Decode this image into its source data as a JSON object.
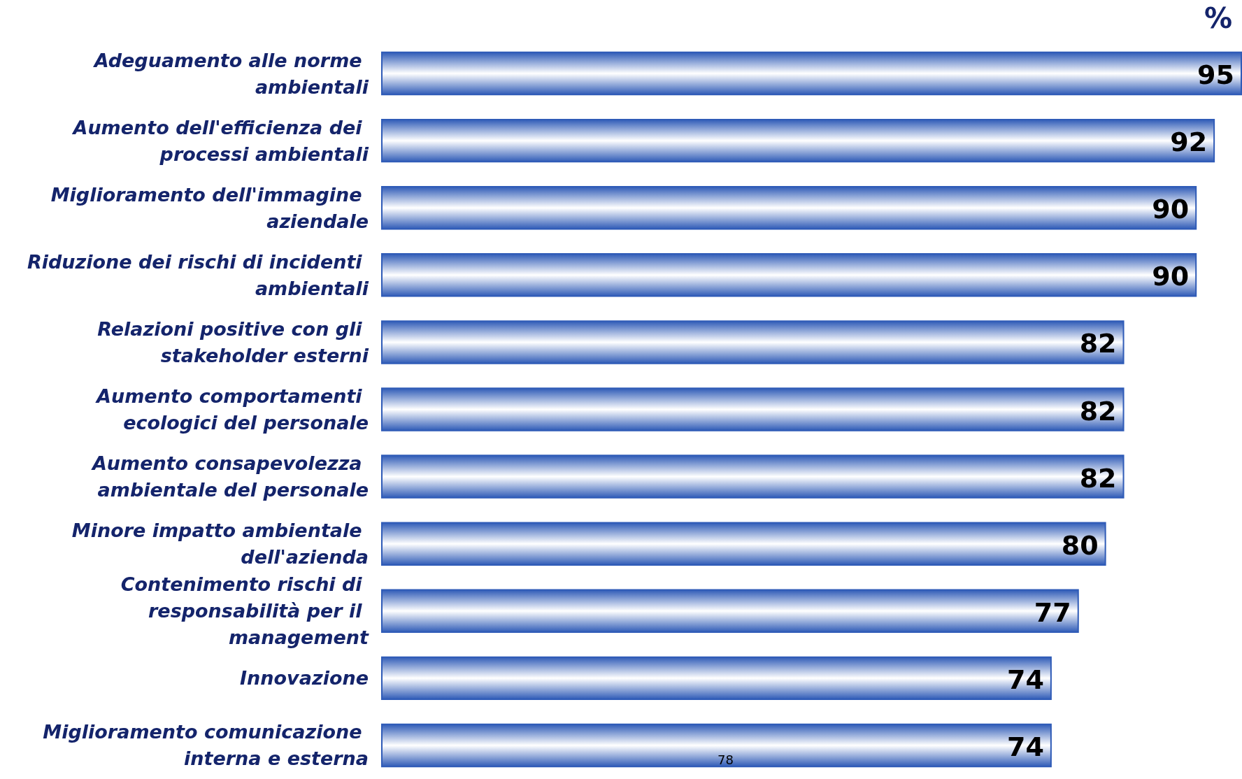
{
  "chart_data": {
    "type": "bar",
    "orientation": "horizontal",
    "categories": [
      "Adeguamento alle norme ambientali",
      "Aumento dell'efficienza dei processi ambientali",
      "Miglioramento dell'immagine aziendale",
      "Riduzione dei rischi di incidenti ambientali",
      "Relazioni positive con gli stakeholder esterni",
      "Aumento comportamenti ecologici del personale",
      "Aumento consapevolezza ambientale del personale",
      "Minore impatto ambientale dell'azienda",
      "Contenimento rischi di responsabilità per il management",
      "Innovazione",
      "Miglioramento comunicazione interna e esterna"
    ],
    "values": [
      95,
      92,
      90,
      90,
      82,
      82,
      82,
      80,
      77,
      74,
      74
    ],
    "color": "#2f5bb7",
    "data_labels": true,
    "annotations": [
      "%",
      "78"
    ]
  }
}
